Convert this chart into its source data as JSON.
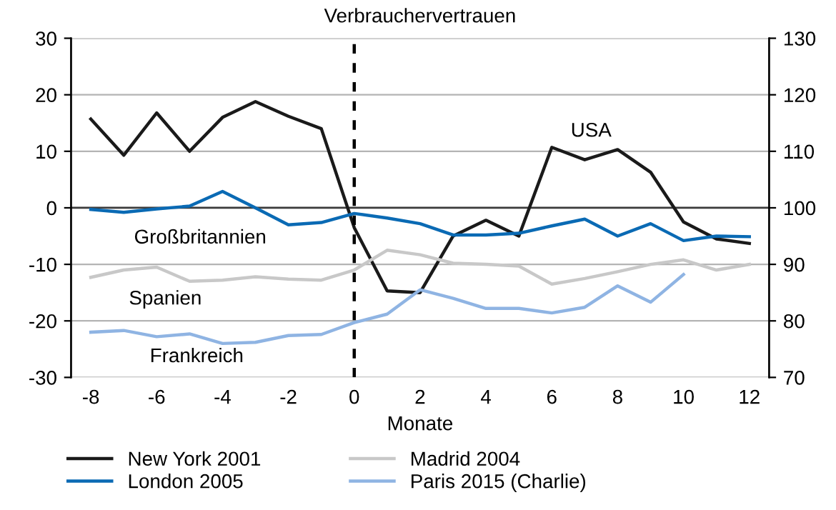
{
  "chart_data": {
    "type": "line",
    "title": "Verbrauchervertrauen",
    "xlabel": "Monate",
    "x": [
      -8,
      -7,
      -6,
      -5,
      -4,
      -3,
      -2,
      -1,
      0,
      1,
      2,
      3,
      4,
      5,
      6,
      7,
      8,
      9,
      10,
      11,
      12
    ],
    "series": [
      {
        "name": "New York 2001",
        "color": "#1a1a1a",
        "values": [
          15.7,
          9.3,
          16.8,
          10,
          16,
          18.8,
          16.2,
          14,
          -3.5,
          -14.7,
          -15,
          -5,
          -2.2,
          -5,
          10.7,
          8.5,
          10.3,
          6.3,
          -2.5,
          -5.5,
          -6.3
        ]
      },
      {
        "name": "London 2005",
        "color": "#0a6ab4",
        "values": [
          -0.3,
          -0.8,
          -0.2,
          0.3,
          2.9,
          0,
          -3,
          -2.6,
          -1,
          -1.8,
          -2.8,
          -4.8,
          -4.8,
          -4.5,
          -3.2,
          -2,
          -5,
          -2.8,
          -5.8,
          -5,
          -5.1
        ]
      },
      {
        "name": "Madrid 2004",
        "color": "#c8c8c8",
        "values": [
          -12.3,
          -11,
          -10.5,
          -13,
          -12.8,
          -12.2,
          -12.6,
          -12.8,
          -11,
          -7.5,
          -8.3,
          -9.8,
          -10,
          -10.3,
          -13.5,
          -12.5,
          -11.3,
          -10,
          -9.2,
          -11,
          -10
        ]
      },
      {
        "name": "Paris 2015 (Charlie)",
        "color": "#8fb4e3",
        "values": [
          -22,
          -21.7,
          -22.8,
          -22.3,
          -24,
          -23.8,
          -22.6,
          -22.4,
          -20.3,
          -18.8,
          -14.5,
          -16,
          -17.8,
          -17.8,
          -18.6,
          -17.6,
          -13.8,
          -16.7,
          -11.8,
          null,
          null
        ]
      }
    ],
    "xlim": [
      -8.6,
      12.6
    ],
    "xticks": [
      -8,
      -6,
      -4,
      -2,
      0,
      2,
      4,
      6,
      8,
      10,
      12
    ],
    "ylim": [
      -30,
      30
    ],
    "yticks": [
      -30,
      -20,
      -10,
      0,
      10,
      20,
      30
    ],
    "y2lim": [
      70,
      130
    ],
    "y2ticks": [
      70,
      80,
      90,
      100,
      110,
      120,
      130
    ],
    "ref_lines": [
      {
        "axis": "y",
        "value": 0,
        "color": "#3c3c3c",
        "line_style": "solid"
      },
      {
        "axis": "x",
        "value": 0,
        "color": "#000000",
        "line_style": "dashed"
      }
    ],
    "annotations": [
      "USA",
      "Großbritannien",
      "Spanien",
      "Frankreich"
    ],
    "grid": "y",
    "legend": "bottom",
    "line_style": "solid",
    "marker": "none"
  }
}
